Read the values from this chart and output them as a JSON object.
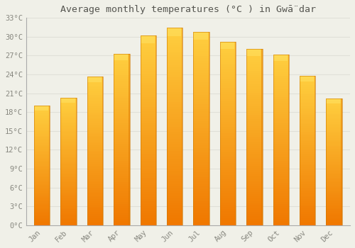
{
  "title": "Average monthly temperatures (°C ) in Gwā̈dar",
  "months": [
    "Jan",
    "Feb",
    "Mar",
    "Apr",
    "May",
    "Jun",
    "Jul",
    "Aug",
    "Sep",
    "Oct",
    "Nov",
    "Dec"
  ],
  "values": [
    19.0,
    20.3,
    23.7,
    27.3,
    30.2,
    31.4,
    30.8,
    29.2,
    28.1,
    27.2,
    23.8,
    20.2
  ],
  "bar_color_main": "#FFAB00",
  "bar_color_left": "#FFC200",
  "bar_color_right": "#F07800",
  "bar_color_top": "#FFD040",
  "background_color": "#F0F0E8",
  "grid_color": "#E0E0D8",
  "text_color": "#888880",
  "title_color": "#555550",
  "ylim": [
    0,
    33
  ],
  "yticks": [
    0,
    3,
    6,
    9,
    12,
    15,
    18,
    21,
    24,
    27,
    30,
    33
  ],
  "ylabel_suffix": "°C",
  "figsize": [
    5.0,
    3.5
  ],
  "dpi": 100
}
